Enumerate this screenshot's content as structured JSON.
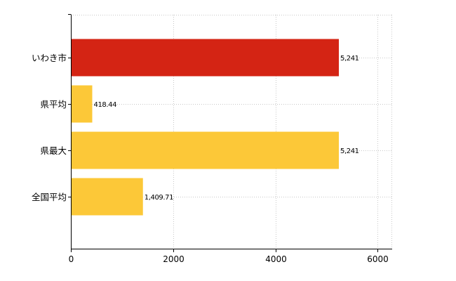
{
  "chart_data": {
    "type": "bar",
    "orientation": "horizontal",
    "categories": [
      "いわき市",
      "県平均",
      "県最大",
      "全国平均"
    ],
    "values": [
      5241,
      418.44,
      5241,
      1409.71
    ],
    "value_labels": [
      "5,241",
      "418.44",
      "5,241",
      "1,409.71"
    ],
    "bar_colors": [
      "#d42414",
      "#fcc838",
      "#fcc838",
      "#fcc838"
    ],
    "xlim": [
      0,
      6270
    ],
    "x_ticks": [
      0,
      2000,
      4000,
      6000
    ],
    "x_tick_labels": [
      "0",
      "2000",
      "4000",
      "6000"
    ],
    "grid": true,
    "grid_style": "dotted",
    "legend": "none",
    "title": "",
    "xlabel": "",
    "ylabel": ""
  }
}
